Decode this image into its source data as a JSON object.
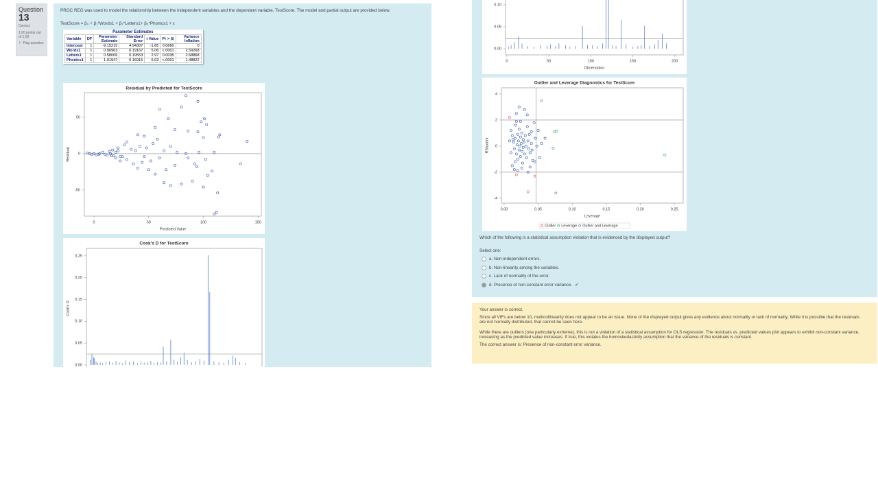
{
  "question_info": {
    "label": "Question",
    "number": "13",
    "status": "Correct",
    "grade": "1.00 points out of 1.00",
    "flag": "Flag question"
  },
  "intro": "PROC REG was used to model the relationship between the independent variables and the dependent variable, TestScore. The model and partial output are provided below.",
  "model": "TestScore = β₀ + β₁*Words1 + β₂*Letters1+ β₃*Phonics1 + ε",
  "table": {
    "title": "Parameter Estimates",
    "headers": [
      "Variable",
      "DF",
      "Parameter Estimate",
      "Standard Error",
      "t Value",
      "Pr > |t|",
      "Variance Inflation"
    ],
    "rows": [
      [
        "Intercept",
        "1",
        "-9.15215",
        "4.94307",
        "-1.85",
        "0.0660",
        "0"
      ],
      [
        "Words1",
        "1",
        "0.96963",
        "0.19167",
        "5.06",
        "<.0001",
        "2.59268"
      ],
      [
        "Letters1",
        "1",
        "0.58006",
        "0.19553",
        "2.97",
        "0.0035",
        "2.68868"
      ],
      [
        "Phonics1",
        "1",
        "1.01947",
        "0.16915",
        "6.03",
        "<.0001",
        "1.48822"
      ]
    ]
  },
  "charts": [
    {
      "type": "scatter",
      "title": "Residual by Predicted for TestScore",
      "xlabel": "Predicted Value",
      "ylabel": "Residual",
      "xlim": [
        -8.8,
        153
      ],
      "ylim": [
        -86,
        84
      ],
      "xticks": [
        0,
        50,
        100,
        150
      ],
      "yticks": [
        -50,
        0,
        50
      ],
      "hlines": [
        0
      ],
      "series": [
        {
          "color": "#2a4fa8",
          "x": [
            -6,
            -4,
            -2,
            0,
            2,
            4,
            5,
            8,
            10,
            12,
            14,
            15,
            17,
            18,
            20,
            22,
            24,
            84,
            95,
            80,
            60,
            68,
            101,
            98,
            103,
            115,
            114,
            140,
            56,
            74,
            40,
            46,
            86,
            95,
            100,
            110,
            112,
            113,
            134,
            108,
            100,
            90,
            80,
            64,
            70,
            56,
            50,
            66,
            74,
            92,
            102,
            86,
            30,
            36,
            24,
            44,
            60,
            84,
            76,
            70,
            54,
            48,
            42,
            38,
            28,
            30,
            34,
            22,
            26,
            20,
            16,
            40,
            52,
            46,
            58,
            64,
            94,
            96,
            110,
            104
          ],
          "y": [
            1,
            0,
            -1,
            0,
            -2,
            -1,
            0,
            2,
            -1,
            -2,
            3,
            0,
            5,
            -3,
            2,
            4,
            -4,
            80,
            72,
            64,
            61,
            48,
            48,
            44,
            40,
            26,
            23,
            17,
            36,
            33,
            26,
            24,
            31,
            30,
            22,
            -83,
            -81,
            -54,
            -14,
            -24,
            -46,
            -38,
            -42,
            -40,
            -44,
            -28,
            -22,
            -22,
            -16,
            -14,
            -8,
            -6,
            -8,
            -14,
            -10,
            -12,
            -6,
            0,
            2,
            10,
            14,
            8,
            10,
            4,
            12,
            16,
            6,
            8,
            -4,
            -6,
            -3,
            -20,
            -10,
            -4,
            20,
            4,
            -18,
            2,
            2,
            -30
          ]
        }
      ]
    },
    {
      "type": "needle",
      "title": "Cook's D for TestScore",
      "ylabel": "Cook's D",
      "color": "#5b7fc7",
      "xlim": [
        -1.6,
        210
      ],
      "ylim": [
        -0.008,
        0.267
      ],
      "yticks": [
        {
          "value": 0,
          "label": "0.00"
        },
        {
          "value": 0.05,
          "label": "0.05"
        },
        {
          "value": 0.1,
          "label": "0.10"
        },
        {
          "value": 0.15,
          "label": "0.15"
        },
        {
          "value": 0.2,
          "label": "0.20"
        },
        {
          "value": 0.25,
          "label": "0.25"
        }
      ],
      "hlines": [
        0.025
      ],
      "x": [
        3,
        5,
        7,
        8,
        10,
        12,
        15,
        18,
        22,
        26,
        30,
        34,
        38,
        42,
        46,
        50,
        55,
        60,
        64,
        68,
        72,
        76,
        80,
        84,
        88,
        91,
        95,
        100,
        104,
        108,
        112,
        116,
        120,
        125,
        130,
        135,
        140,
        145,
        147,
        152,
        158,
        164,
        170,
        175,
        178,
        183,
        190
      ],
      "values": [
        0.012,
        0.025,
        0.018,
        0.015,
        0.008,
        0.005,
        0.006,
        0.004,
        0.007,
        0.008,
        0.005,
        0.009,
        0.006,
        0.004,
        0.01,
        0.006,
        0.008,
        0.004,
        0.007,
        0.005,
        0.006,
        0.009,
        0.004,
        0.006,
        0.005,
        0.042,
        0.008,
        0.058,
        0.012,
        0.007,
        0.018,
        0.028,
        0.011,
        0.006,
        0.009,
        0.014,
        0.01,
        0.251,
        0.167,
        0.008,
        0.006,
        0.005,
        0.012,
        0.021,
        0.016,
        0.006,
        0.004
      ]
    },
    {
      "type": "needle",
      "xlabel": "Observation",
      "color": "#5b7fc7",
      "xlim": [
        -1.6,
        210
      ],
      "ylim": [
        -0.014,
        0.142
      ],
      "xticks": [
        0,
        50,
        100,
        150,
        200
      ],
      "yticks": [
        {
          "value": 0,
          "label": "0.00"
        },
        {
          "value": 0.05,
          "label": "0.05"
        },
        {
          "value": 0.1,
          "label": "0.10"
        }
      ],
      "hlines": [
        0.023
      ],
      "x": [
        2,
        5,
        9,
        14,
        18,
        25,
        32,
        40,
        48,
        52,
        58,
        62,
        70,
        75,
        82,
        90,
        96,
        102,
        108,
        114,
        118,
        121,
        126,
        130,
        136,
        142,
        150,
        156,
        160,
        164,
        170,
        176,
        180,
        185,
        190
      ],
      "values": [
        0.004,
        0.008,
        0.015,
        0.028,
        0.012,
        0.006,
        0.004,
        0.008,
        0.007,
        0.01,
        0.006,
        0.012,
        0.008,
        0.004,
        0.006,
        0.052,
        0.009,
        0.008,
        0.006,
        0.012,
        0.19,
        0.13,
        0.008,
        0.006,
        0.065,
        0.01,
        0.004,
        0.006,
        0.008,
        0.052,
        0.006,
        0.01,
        0.02,
        0.035,
        0.012
      ]
    },
    {
      "type": "scatter",
      "title": "Outlier and Leverage Diagnostics for TestScore",
      "xlabel": "Leverage",
      "ylabel": "RStudent",
      "xlim": [
        -0.004,
        0.263
      ],
      "ylim": [
        -4.37,
        4.47
      ],
      "xticks": [
        {
          "value": 0,
          "label": "0.00"
        },
        {
          "value": 0.05,
          "label": "0.05"
        },
        {
          "value": 0.1,
          "label": "0.10"
        },
        {
          "value": 0.15,
          "label": "0.15"
        },
        {
          "value": 0.2,
          "label": "0.20"
        },
        {
          "value": 0.25,
          "label": "0.25"
        }
      ],
      "yticks": [
        -4,
        -2,
        0,
        2,
        4
      ],
      "hlines": [
        -2,
        2
      ],
      "vlines": [
        0.047
      ],
      "series": [
        {
          "color": "#2a4fa8",
          "x": [
            0.01,
            0.012,
            0.014,
            0.015,
            0.016,
            0.017,
            0.018,
            0.019,
            0.02,
            0.02,
            0.021,
            0.022,
            0.022,
            0.023,
            0.024,
            0.024,
            0.025,
            0.026,
            0.026,
            0.027,
            0.028,
            0.028,
            0.029,
            0.03,
            0.031,
            0.032,
            0.033,
            0.034,
            0.035,
            0.036,
            0.037,
            0.038,
            0.04,
            0.042,
            0.044,
            0.046,
            0.012,
            0.015,
            0.018,
            0.024,
            0.03,
            0.022,
            0.034,
            0.038,
            0.02,
            0.026,
            0.045,
            0.05,
            0.052,
            0.055,
            0.06,
            0.01,
            0.013,
            0.016,
            0.04,
            0.041,
            0.048,
            0.008,
            0.035,
            0.018
          ],
          "y": [
            1.2,
            0.8,
            0.3,
            -0.2,
            0.6,
            1.6,
            -0.6,
            0.1,
            0.9,
            -1.0,
            0.4,
            -0.3,
            1.3,
            0.0,
            -0.8,
            0.7,
            0.2,
            -0.4,
            1.0,
            -1.3,
            0.5,
            -0.1,
            0.3,
            -0.6,
            0.8,
            0.0,
            -0.9,
            1.5,
            0.4,
            -0.2,
            0.9,
            -0.5,
            0.2,
            -1.1,
            1.8,
            0.6,
            -1.5,
            -1.8,
            1.9,
            1.9,
            2.8,
            3.0,
            2.4,
            -1.6,
            -1.9,
            -1.7,
            -1.2,
            1.2,
            -0.9,
            0.2,
            0.6,
            -0.5,
            0.5,
            -1.2,
            1.1,
            -0.3,
            0.0,
            0.4,
            -2.0,
            2.5
          ]
        },
        {
          "name": "Outlier",
          "color": "#e0455a",
          "x": [
            0.008,
            0.018,
            0.035,
            0.045
          ],
          "y": [
            2.2,
            -2.2,
            -3.5,
            -2.3
          ]
        },
        {
          "name": "Leverage",
          "color": "#2e9e6a",
          "x": [
            0.074,
            0.077,
            0.072,
            0.236
          ],
          "y": [
            1.1,
            1.16,
            -0.16,
            -0.68
          ]
        },
        {
          "name": "Outlier and Leverage",
          "color": "#7b68ae",
          "x": [
            0.055,
            0.076
          ],
          "y": [
            3.47,
            -3.6
          ]
        }
      ]
    }
  ],
  "question": "Which of the following is a statistical assumption violation that is evidenced by the displayed output?",
  "select_label": "Select one:",
  "options": [
    "a. Non-independent errors.",
    "b. Non-linearity among the variables.",
    "c. Lack of normality of the error.",
    "d. Presence of non-constant error variance."
  ],
  "selected": 3,
  "feedback": {
    "verdict": "Your answer is correct.",
    "paragraphs": [
      "Since all VIFs are below 10, multicollinearity does not appear to be an issue. None of the displayed output gives any evidence about normality or lack of normality. While it is possible that the residuals are not normally distributed, that cannot be seen here.",
      "While there are outliers (one particularly extreme), this is not a violation of a statistical assumption for OLS regression. The residuals vs. predicted values plot appears to exhibit non-constant variance, increasing as the predicted value increases. If true, this violates the homoskedasticity assumption that the variance of the residuals is constant."
    ],
    "correct_answer": "The correct answer is: Presence of non-constant error variance."
  }
}
